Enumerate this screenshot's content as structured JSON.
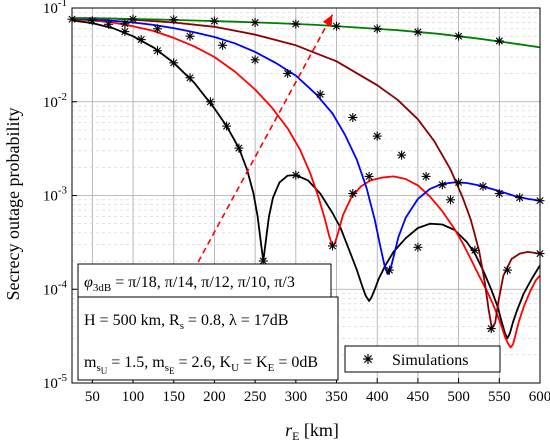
{
  "chart_data": {
    "type": "line",
    "xlabel_main": "r",
    "xlabel_sub": "E",
    "xlabel_unit": " [km]",
    "ylabel": "Secrecy outage probability",
    "xlim": [
      25,
      600
    ],
    "ylim": [
      1e-05,
      0.1
    ],
    "yscale": "log",
    "x_ticks": [
      50,
      100,
      150,
      200,
      250,
      300,
      350,
      400,
      450,
      500,
      550,
      600
    ],
    "y_ticks": [
      {
        "value": 1e-05,
        "base": "10",
        "exp": "-5"
      },
      {
        "value": 0.0001,
        "base": "10",
        "exp": "-4"
      },
      {
        "value": 0.001,
        "base": "10",
        "exp": "-3"
      },
      {
        "value": 0.01,
        "base": "10",
        "exp": "-2"
      },
      {
        "value": 0.1,
        "base": "10",
        "exp": "-1"
      }
    ],
    "grid": true,
    "series": [
      {
        "color": "#000000",
        "x": [
          25,
          50,
          75,
          100,
          125,
          150,
          175,
          200,
          215,
          230,
          240,
          248,
          253,
          257,
          260,
          263,
          267,
          272,
          280,
          290,
          300,
          315,
          330,
          345,
          355,
          365,
          375,
          382,
          386,
          390,
          393,
          397,
          402,
          410,
          420,
          435,
          450,
          465,
          480,
          495,
          510,
          520,
          530,
          540,
          548,
          553,
          557,
          560,
          563,
          567,
          572,
          580,
          590,
          600
        ],
        "y": [
          0.074,
          0.069,
          0.061,
          0.05,
          0.038,
          0.026,
          0.016,
          0.0085,
          0.0055,
          0.0032,
          0.0019,
          0.00105,
          0.0006,
          0.00032,
          0.0002,
          0.00032,
          0.0006,
          0.00095,
          0.00138,
          0.00163,
          0.00165,
          0.00145,
          0.00105,
          0.00065,
          0.00045,
          0.00027,
          0.00016,
          0.000105,
          8.5e-05,
          7.5e-05,
          8.2e-05,
          0.0001,
          0.00013,
          0.00018,
          0.00025,
          0.00035,
          0.00045,
          0.0005,
          0.00049,
          0.00043,
          0.00032,
          0.00024,
          0.00016,
          0.0001,
          6.5e-05,
          4.5e-05,
          3.4e-05,
          3e-05,
          3.4e-05,
          4.5e-05,
          6e-05,
          9e-05,
          0.00013,
          0.00018
        ]
      },
      {
        "color": "#ff0000",
        "x": [
          25,
          50,
          75,
          100,
          125,
          150,
          175,
          200,
          225,
          250,
          270,
          290,
          305,
          318,
          328,
          336,
          341,
          345,
          348,
          352,
          358,
          368,
          380,
          392,
          405,
          420,
          435,
          450,
          465,
          480,
          495,
          505,
          515,
          525,
          535,
          542,
          548,
          553,
          557,
          561,
          564,
          567,
          570,
          574,
          580,
          588,
          595,
          600
        ],
        "y": [
          0.076,
          0.074,
          0.07,
          0.064,
          0.057,
          0.048,
          0.039,
          0.03,
          0.021,
          0.0135,
          0.0088,
          0.0052,
          0.0031,
          0.0017,
          0.00095,
          0.00055,
          0.00037,
          0.00029,
          0.00031,
          0.0004,
          0.00062,
          0.00095,
          0.00125,
          0.00145,
          0.00155,
          0.0016,
          0.0015,
          0.00128,
          0.00097,
          0.00068,
          0.00044,
          0.00031,
          0.00021,
          0.00014,
          9.5e-05,
          7e-05,
          5.2e-05,
          4e-05,
          3.1e-05,
          2.6e-05,
          2.4e-05,
          2.6e-05,
          3.3e-05,
          4.5e-05,
          6.5e-05,
          9.5e-05,
          0.000125,
          0.00014
        ]
      },
      {
        "color": "#0000ff",
        "x": [
          25,
          50,
          75,
          100,
          125,
          150,
          175,
          200,
          225,
          250,
          275,
          300,
          325,
          345,
          360,
          375,
          387,
          397,
          404,
          409,
          413,
          416,
          420,
          426,
          435,
          450,
          465,
          480,
          495,
          510,
          525,
          540,
          555,
          570,
          585,
          600
        ],
        "y": [
          0.077,
          0.076,
          0.073,
          0.07,
          0.066,
          0.061,
          0.055,
          0.049,
          0.042,
          0.034,
          0.026,
          0.019,
          0.012,
          0.0075,
          0.0045,
          0.0024,
          0.0012,
          0.00055,
          0.00028,
          0.00018,
          0.000145,
          0.00016,
          0.00022,
          0.00036,
          0.00058,
          0.00092,
          0.00118,
          0.00133,
          0.00138,
          0.00136,
          0.00128,
          0.00118,
          0.00108,
          0.00098,
          0.00092,
          0.00088
        ]
      },
      {
        "color": "#8b0000",
        "x": [
          25,
          50,
          75,
          100,
          150,
          200,
          250,
          300,
          350,
          400,
          425,
          450,
          470,
          490,
          505,
          515,
          525,
          532,
          537,
          541,
          545,
          549,
          555,
          565,
          575,
          585,
          600
        ],
        "y": [
          0.078,
          0.078,
          0.077,
          0.075,
          0.07,
          0.063,
          0.052,
          0.04,
          0.027,
          0.015,
          0.0105,
          0.0065,
          0.0038,
          0.0019,
          0.00095,
          0.00055,
          0.00026,
          0.00012,
          6e-05,
          3.8e-05,
          4.4e-05,
          7.5e-05,
          0.00014,
          0.00021,
          0.00024,
          0.00025,
          0.00024
        ]
      },
      {
        "color": "#008000",
        "x": [
          25,
          75,
          125,
          175,
          225,
          275,
          325,
          375,
          425,
          475,
          525,
          575,
          600
        ],
        "y": [
          0.078,
          0.077,
          0.0755,
          0.0735,
          0.0715,
          0.069,
          0.066,
          0.062,
          0.058,
          0.053,
          0.047,
          0.041,
          0.038
        ]
      }
    ],
    "markers": [
      {
        "x": 25,
        "y": 0.076
      },
      {
        "x": 50,
        "y": 0.073
      },
      {
        "x": 70,
        "y": 0.067
      },
      {
        "x": 90,
        "y": 0.056
      },
      {
        "x": 110,
        "y": 0.046
      },
      {
        "x": 130,
        "y": 0.035
      },
      {
        "x": 150,
        "y": 0.026
      },
      {
        "x": 170,
        "y": 0.018
      },
      {
        "x": 195,
        "y": 0.01
      },
      {
        "x": 215,
        "y": 0.0055
      },
      {
        "x": 230,
        "y": 0.0032
      },
      {
        "x": 260,
        "y": 0.0002
      },
      {
        "x": 300,
        "y": 0.00165
      },
      {
        "x": 345,
        "y": 0.00029
      },
      {
        "x": 370,
        "y": 0.00105
      },
      {
        "x": 390,
        "y": 0.0016
      },
      {
        "x": 415,
        "y": 0.00016
      },
      {
        "x": 450,
        "y": 0.00028
      },
      {
        "x": 480,
        "y": 0.0013
      },
      {
        "x": 500,
        "y": 0.00138
      },
      {
        "x": 530,
        "y": 0.00125
      },
      {
        "x": 550,
        "y": 0.00105
      },
      {
        "x": 575,
        "y": 0.00095
      },
      {
        "x": 600,
        "y": 0.00088
      },
      {
        "x": 90,
        "y": 0.068
      },
      {
        "x": 130,
        "y": 0.06
      },
      {
        "x": 170,
        "y": 0.05
      },
      {
        "x": 210,
        "y": 0.04
      },
      {
        "x": 250,
        "y": 0.028
      },
      {
        "x": 290,
        "y": 0.02
      },
      {
        "x": 330,
        "y": 0.012
      },
      {
        "x": 370,
        "y": 0.0068
      },
      {
        "x": 400,
        "y": 0.0043
      },
      {
        "x": 430,
        "y": 0.0027
      },
      {
        "x": 460,
        "y": 0.0016
      },
      {
        "x": 490,
        "y": 0.0009
      },
      {
        "x": 520,
        "y": 0.00026
      },
      {
        "x": 540,
        "y": 3.8e-05
      },
      {
        "x": 560,
        "y": 0.00016
      },
      {
        "x": 600,
        "y": 0.00024
      },
      {
        "x": 100,
        "y": 0.076
      },
      {
        "x": 150,
        "y": 0.075
      },
      {
        "x": 200,
        "y": 0.0725
      },
      {
        "x": 250,
        "y": 0.07
      },
      {
        "x": 300,
        "y": 0.0675
      },
      {
        "x": 350,
        "y": 0.064
      },
      {
        "x": 400,
        "y": 0.06
      },
      {
        "x": 450,
        "y": 0.0555
      },
      {
        "x": 500,
        "y": 0.05
      },
      {
        "x": 550,
        "y": 0.0445
      }
    ],
    "arrow": {
      "x1": 180,
      "y1": 0.000195,
      "x2": 345,
      "y2": 0.085,
      "color": "#ff0000"
    },
    "annotations": {
      "line1": {
        "phi": "φ",
        "phi_sub": "3dB",
        "rest": " = π/18, π/14, π/12, π/10, π/3"
      },
      "line2": {
        "t1": "H = 500 km, R",
        "s1": "s",
        "t2": " = 0.8, λ = 17dB"
      },
      "line3": {
        "t1": "m",
        "s1": "s",
        "ss1": "U",
        "t2": " = 1.5, m",
        "s2": "s",
        "ss2": "E",
        "t3": " = 2.6, K",
        "s3": "U",
        "t4": " = K",
        "s4": "E",
        "t5": " = 0dB"
      }
    },
    "legend": {
      "label": "Simulations",
      "position": "bottom-right"
    }
  }
}
